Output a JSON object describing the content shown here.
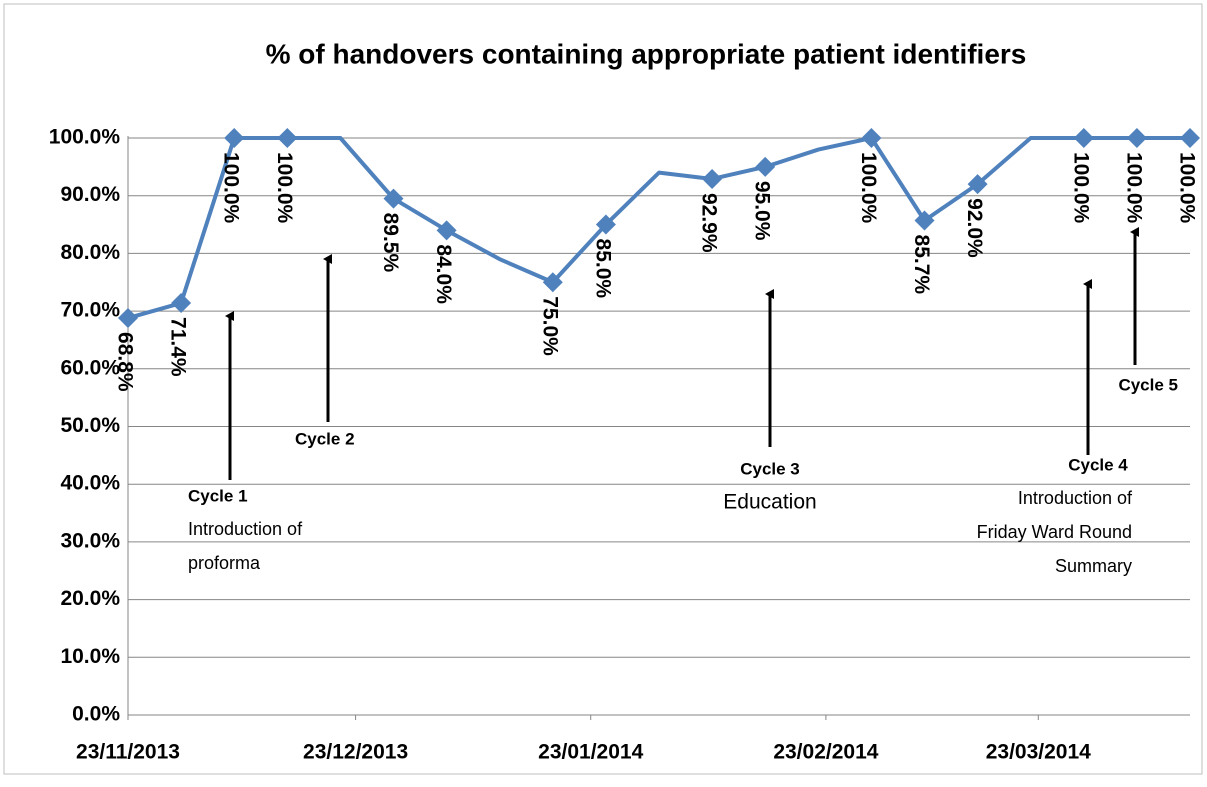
{
  "chart_data": {
    "type": "line",
    "title": "% of handovers containing appropriate patient identifiers",
    "x": [
      "2013-11-23",
      "2013-11-30",
      "2013-12-07",
      "2013-12-14",
      "2013-12-21",
      "2013-12-28",
      "2014-01-04",
      "2014-01-11",
      "2014-01-18",
      "2014-01-25",
      "2014-02-01",
      "2014-02-08",
      "2014-02-15",
      "2014-02-22",
      "2014-03-01",
      "2014-03-08",
      "2014-03-15",
      "2014-03-22",
      "2014-03-29",
      "2014-04-05",
      "2014-04-12"
    ],
    "series": [
      {
        "name": "% of handovers",
        "color": "#4f81bd",
        "values": [
          68.8,
          71.4,
          100,
          100,
          100,
          89.5,
          84.0,
          79,
          75.0,
          85.0,
          94,
          92.9,
          95.0,
          98,
          100,
          85.7,
          92.0,
          100,
          100,
          100,
          100
        ],
        "value_labels": [
          "68.8%",
          "71.4%",
          "100.0%",
          "100.0%",
          null,
          "89.5%",
          "84.0%",
          null,
          "75.0%",
          "85.0%",
          null,
          "92.9%",
          "95.0%",
          null,
          "100.0%",
          "85.7%",
          "92.0%",
          null,
          "100.0%",
          "100.0%",
          "100.0%"
        ]
      }
    ],
    "xlim": [
      "2013-11-23",
      "2014-04-12"
    ],
    "xticks": [
      {
        "value": "2013-11-23",
        "label": "23/11/2013"
      },
      {
        "value": "2013-12-23",
        "label": "23/12/2013"
      },
      {
        "value": "2014-01-23",
        "label": "23/01/2014"
      },
      {
        "value": "2014-02-23",
        "label": "23/02/2014"
      },
      {
        "value": "2014-03-23",
        "label": "23/03/2014"
      }
    ],
    "ylim": [
      0,
      100
    ],
    "yticks": [
      {
        "value": 0,
        "label": "0.0%"
      },
      {
        "value": 10,
        "label": "10.0%"
      },
      {
        "value": 20,
        "label": "20.0%"
      },
      {
        "value": 30,
        "label": "30.0%"
      },
      {
        "value": 40,
        "label": "40.0%"
      },
      {
        "value": 50,
        "label": "50.0%"
      },
      {
        "value": 60,
        "label": "60.0%"
      },
      {
        "value": 70,
        "label": "70.0%"
      },
      {
        "value": 80,
        "label": "80.0%"
      },
      {
        "value": 90,
        "label": "90.0%"
      },
      {
        "value": 100,
        "label": "100.0%"
      }
    ],
    "grid": true,
    "annotations": [
      {
        "title": "Cycle 1",
        "lines": [
          "Introduction of",
          "proforma"
        ]
      },
      {
        "title": "Cycle 2",
        "lines": []
      },
      {
        "title": "Cycle 3",
        "lines": [
          "Education"
        ]
      },
      {
        "title": "Cycle 4",
        "lines": [
          "Introduction of",
          "Friday Ward Round",
          "Summary"
        ]
      },
      {
        "title": "Cycle 5",
        "lines": []
      }
    ]
  }
}
